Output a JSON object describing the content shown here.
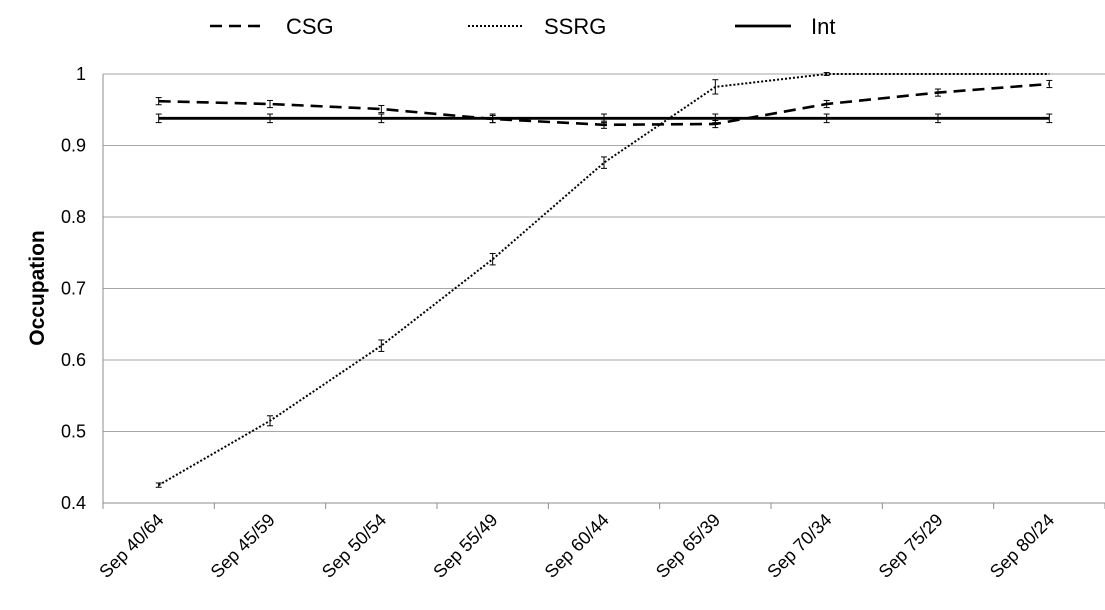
{
  "chart_data": {
    "type": "line",
    "categories": [
      "Sep 40/64",
      "Sep 45/59",
      "Sep 50/54",
      "Sep 55/49",
      "Sep 60/44",
      "Sep 65/39",
      "Sep 70/34",
      "Sep 75/29",
      "Sep 80/24"
    ],
    "series": [
      {
        "name": "CSG",
        "line_style": "dashed",
        "color": "#000000",
        "values": [
          0.962,
          0.958,
          0.951,
          0.937,
          0.929,
          0.93,
          0.958,
          0.974,
          0.986
        ],
        "errors": [
          0.005,
          0.005,
          0.005,
          0.005,
          0.005,
          0.005,
          0.005,
          0.005,
          0.005
        ]
      },
      {
        "name": "SSRG",
        "line_style": "dotted",
        "color": "#000000",
        "values": [
          0.425,
          0.515,
          0.62,
          0.741,
          0.876,
          0.982,
          1.0,
          1.0,
          1.0
        ],
        "errors": [
          0.003,
          0.007,
          0.008,
          0.008,
          0.008,
          0.01,
          0.002,
          0.0,
          0.0
        ]
      },
      {
        "name": "Int",
        "line_style": "solid",
        "color": "#000000",
        "values": [
          0.938,
          0.938,
          0.938,
          0.938,
          0.938,
          0.938,
          0.938,
          0.938,
          0.938
        ],
        "errors": [
          0.006,
          0.006,
          0.006,
          0.006,
          0.006,
          0.006,
          0.006,
          0.006,
          0.006
        ]
      }
    ],
    "title": "",
    "xlabel": "",
    "ylabel": "Occupation",
    "ylim": [
      0.4,
      1.0
    ],
    "yticks": [
      "0.4",
      "0.5",
      "0.6",
      "0.7",
      "0.8",
      "0.9",
      "1"
    ],
    "grid": "horizontal",
    "legend_position": "top"
  }
}
